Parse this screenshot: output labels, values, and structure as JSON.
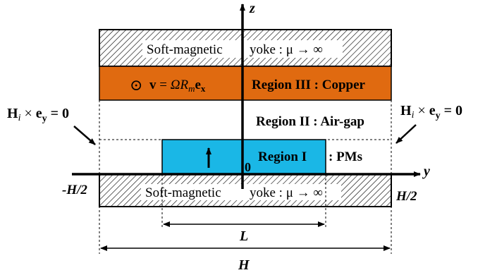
{
  "colors": {
    "copper": "#e06a10",
    "pm": "#1ab7e6",
    "yoke_hatch": "#000000",
    "line": "#000000"
  },
  "axes": {
    "z": "z",
    "y": "y",
    "origin": "0"
  },
  "yoke_top": {
    "text_a": "Soft-magnetic",
    "text_b": "yoke : μ → ∞"
  },
  "yoke_bottom": {
    "text_a": "Soft-magnetic",
    "text_b": "yoke : μ → ∞"
  },
  "copper": {
    "velocity_symbol": "⊙",
    "v_bold": "v",
    "v_eq": " = ",
    "v_omega": "ΩR",
    "v_m": "m",
    "v_e": "e",
    "v_x": "x",
    "label": "Region III : Copper"
  },
  "airgap": {
    "label": "Region II : Air-gap"
  },
  "pm": {
    "label": "Region I",
    "suffix": ": PMs",
    "arrow": "↑"
  },
  "boundary": {
    "h": "H",
    "i": "i",
    "times": " × ",
    "e": "e",
    "y": "y",
    "eq": " = 0"
  },
  "dimensions": {
    "left_edge": "-H/2",
    "right_edge": "H/2",
    "L": "L",
    "H": "H"
  }
}
